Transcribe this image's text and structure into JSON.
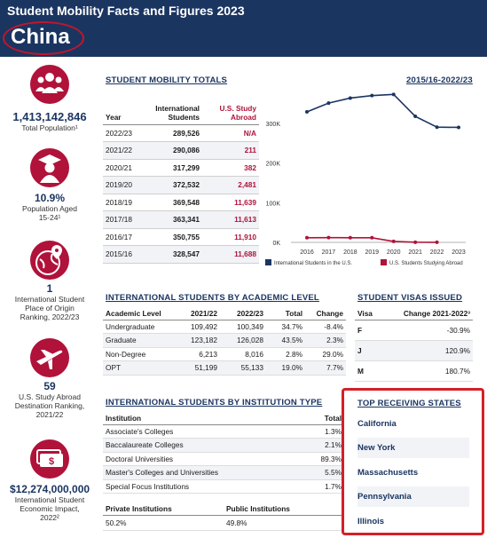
{
  "header": {
    "title": "Student Mobility Facts and Figures 2023",
    "country": "China"
  },
  "colors": {
    "navy": "#1b3561",
    "accent_red": "#b0123a",
    "highlight": "#d61f26"
  },
  "left_stats": [
    {
      "icon": "people-icon",
      "value": "1,413,142,846",
      "label_lines": [
        "Total Population¹"
      ]
    },
    {
      "icon": "graduate-icon",
      "value": "10.9%",
      "label_lines": [
        "Population Aged",
        "15-24¹"
      ]
    },
    {
      "icon": "globe-pin-icon",
      "value": "1",
      "label_lines": [
        "International Student",
        "Place of Origin",
        "Ranking, 2022/23"
      ]
    },
    {
      "icon": "airplane-icon",
      "value": "59",
      "label_lines": [
        "U.S. Study Abroad",
        "Destination Ranking,",
        "2021/22"
      ]
    },
    {
      "icon": "money-icon",
      "value": "$12,274,000,000",
      "label_lines": [
        "International Student",
        "Economic Impact,",
        "2022²"
      ]
    }
  ],
  "totals": {
    "title": "STUDENT MOBILITY TOTALS",
    "col_year": "Year",
    "col_intl": [
      "International",
      "Students"
    ],
    "col_abroad": [
      "U.S. Study",
      "Abroad"
    ],
    "rows": [
      {
        "year": "2022/23",
        "intl": "289,526",
        "abroad": "N/A"
      },
      {
        "year": "2021/22",
        "intl": "290,086",
        "abroad": "211"
      },
      {
        "year": "2020/21",
        "intl": "317,299",
        "abroad": "382"
      },
      {
        "year": "2019/20",
        "intl": "372,532",
        "abroad": "2,481"
      },
      {
        "year": "2018/19",
        "intl": "369,548",
        "abroad": "11,639"
      },
      {
        "year": "2017/18",
        "intl": "363,341",
        "abroad": "11,613"
      },
      {
        "year": "2016/17",
        "intl": "350,755",
        "abroad": "11,910"
      },
      {
        "year": "2015/16",
        "intl": "328,547",
        "abroad": "11,688"
      }
    ]
  },
  "chart_data": {
    "type": "line",
    "title": "2015/16-2022/23",
    "x": [
      "2016",
      "2017",
      "2018",
      "2019",
      "2020",
      "2021",
      "2022",
      "2023"
    ],
    "y_ticks": [
      "0K",
      "100K",
      "200K",
      "300K"
    ],
    "ylim": [
      0,
      380000
    ],
    "series": [
      {
        "name": "International Students in the U.S.",
        "color": "#1b3561",
        "values": [
          328547,
          350755,
          363341,
          369548,
          372532,
          317299,
          290086,
          289526
        ]
      },
      {
        "name": "U.S. Students Studying Abroad",
        "color": "#b0123a",
        "values": [
          11688,
          11910,
          11613,
          11639,
          2481,
          382,
          211,
          null
        ]
      }
    ],
    "legend_position": "bottom"
  },
  "academic": {
    "title": "INTERNATIONAL STUDENTS BY ACADEMIC LEVEL",
    "headers": [
      "Academic Level",
      "2021/22",
      "2022/23",
      "Total",
      "Change"
    ],
    "rows": [
      [
        "Undergraduate",
        "109,492",
        "100,349",
        "34.7%",
        "-8.4%"
      ],
      [
        "Graduate",
        "123,182",
        "126,028",
        "43.5%",
        "2.3%"
      ],
      [
        "Non-Degree",
        "6,213",
        "8,016",
        "2.8%",
        "29.0%"
      ],
      [
        "OPT",
        "51,199",
        "55,133",
        "19.0%",
        "7.7%"
      ]
    ]
  },
  "visas": {
    "title": "STUDENT VISAS ISSUED",
    "headers": [
      "Visa",
      "Change 2021-2022³"
    ],
    "rows": [
      [
        "F",
        "-30.9%"
      ],
      [
        "J",
        "120.9%"
      ],
      [
        "M",
        "180.7%"
      ]
    ]
  },
  "institution": {
    "title": "INTERNATIONAL STUDENTS BY INSTITUTION TYPE",
    "headers": [
      "Institution",
      "Total"
    ],
    "rows": [
      [
        "Associate's Colleges",
        "1.3%"
      ],
      [
        "Baccalaureate Colleges",
        "2.1%"
      ],
      [
        "Doctoral Universities",
        "89.3%"
      ],
      [
        "Master's Colleges and Universities",
        "5.5%"
      ],
      [
        "Special Focus Institutions",
        "1.7%"
      ]
    ],
    "private_label": "Private Institutions",
    "public_label": "Public Institutions",
    "private_value": "50.2%",
    "public_value": "49.8%"
  },
  "states": {
    "title": "TOP RECEIVING STATES",
    "items": [
      "California",
      "New York",
      "Massachusetts",
      "Pennsylvania",
      "Illinois"
    ]
  }
}
